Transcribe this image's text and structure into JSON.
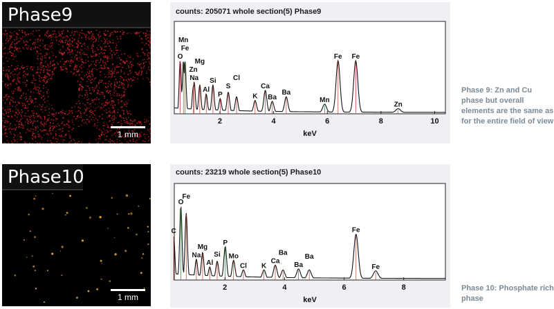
{
  "panels": [
    {
      "label": "Phase9",
      "scale_label": "1 mm",
      "map_color": "#c8242c",
      "spectrum_title": "counts: 205071   whole section(5) Phase9",
      "caption": "Phase 9: Zn and Cu phase but overall elements are the same as for the entire field of view"
    },
    {
      "label": "Phase10",
      "scale_label": "1 mm",
      "map_color": "#e6a640",
      "spectrum_title": "counts: 23219   whole section(5) Phase10",
      "caption": "Phase 10: Phosphate rich phase"
    }
  ],
  "chart_data": [
    {
      "type": "line",
      "title": "counts: 205071   whole section(5) Phase9",
      "xlabel": "keV",
      "ylabel": "",
      "xlim": [
        0.3,
        10.4
      ],
      "ylim": [
        0,
        100
      ],
      "xticks": [
        2,
        4,
        6,
        8,
        10
      ],
      "grid": false,
      "peaks": [
        {
          "label": "O",
          "x": 0.52,
          "y": 56
        },
        {
          "label": "Fe",
          "x": 0.7,
          "y": 56
        },
        {
          "label": "Mn",
          "x": 0.64,
          "y": 56
        },
        {
          "label": "Na",
          "x": 1.04,
          "y": 33
        },
        {
          "label": "Zn",
          "x": 1.01,
          "y": 28
        },
        {
          "label": "Mg",
          "x": 1.25,
          "y": 30
        },
        {
          "label": "Al",
          "x": 1.49,
          "y": 20
        },
        {
          "label": "Si",
          "x": 1.74,
          "y": 30
        },
        {
          "label": "P",
          "x": 2.01,
          "y": 15
        },
        {
          "label": "S",
          "x": 2.31,
          "y": 22
        },
        {
          "label": "Cl",
          "x": 2.62,
          "y": 17
        },
        {
          "label": "K",
          "x": 3.31,
          "y": 13
        },
        {
          "label": "Ca",
          "x": 3.69,
          "y": 24
        },
        {
          "label": "Ba",
          "x": 4.47,
          "y": 17
        },
        {
          "label": "Ba",
          "x": 3.95,
          "y": 12
        },
        {
          "label": "Mn",
          "x": 5.9,
          "y": 9
        },
        {
          "label": "Fe",
          "x": 6.4,
          "y": 56
        },
        {
          "label": "Fe",
          "x": 7.06,
          "y": 56
        },
        {
          "label": "Zn",
          "x": 8.64,
          "y": 4
        }
      ]
    },
    {
      "type": "line",
      "title": "counts: 23219   whole section(5) Phase10",
      "xlabel": "keV",
      "ylabel": "",
      "xlim": [
        0.3,
        9.4
      ],
      "ylim": [
        0,
        100
      ],
      "xticks": [
        2,
        4,
        6,
        8
      ],
      "grid": false,
      "peaks": [
        {
          "label": "C",
          "x": 0.28,
          "y": 45
        },
        {
          "label": "O",
          "x": 0.52,
          "y": 75
        },
        {
          "label": "Fe",
          "x": 0.7,
          "y": 68
        },
        {
          "label": "Na",
          "x": 1.04,
          "y": 20
        },
        {
          "label": "Mg",
          "x": 1.25,
          "y": 27
        },
        {
          "label": "Al",
          "x": 1.49,
          "y": 12
        },
        {
          "label": "Si",
          "x": 1.74,
          "y": 18
        },
        {
          "label": "P",
          "x": 2.01,
          "y": 33
        },
        {
          "label": "Mo",
          "x": 2.29,
          "y": 19
        },
        {
          "label": "Cl",
          "x": 2.62,
          "y": 9
        },
        {
          "label": "K",
          "x": 3.31,
          "y": 9
        },
        {
          "label": "Ca",
          "x": 3.69,
          "y": 14
        },
        {
          "label": "Ba",
          "x": 3.95,
          "y": 9
        },
        {
          "label": "Ba",
          "x": 4.47,
          "y": 10
        },
        {
          "label": "Ba",
          "x": 4.83,
          "y": 9
        },
        {
          "label": "Fe",
          "x": 6.4,
          "y": 46
        },
        {
          "label": "Fe",
          "x": 7.06,
          "y": 8
        }
      ]
    }
  ]
}
